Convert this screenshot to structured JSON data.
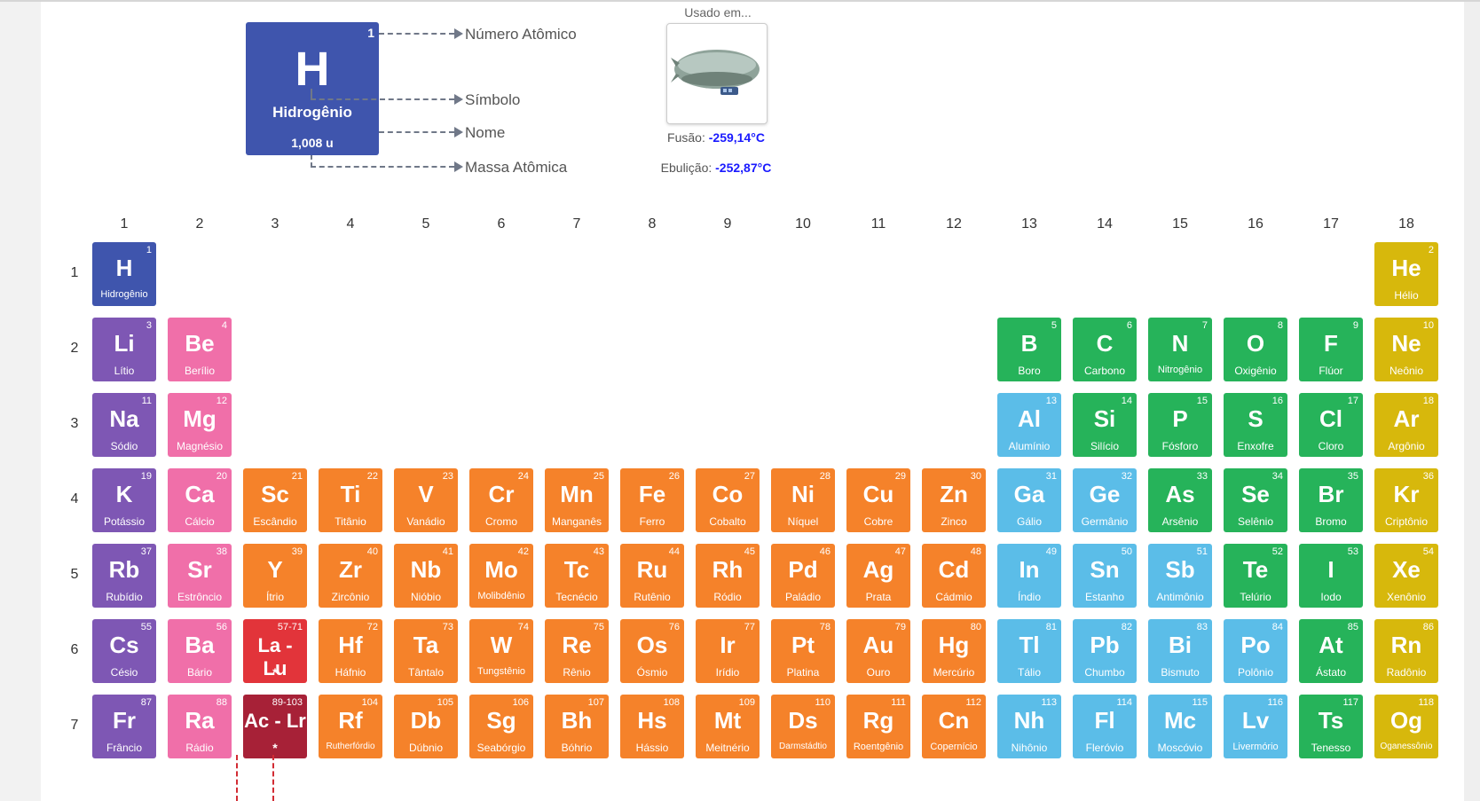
{
  "legend": {
    "card": {
      "number": "1",
      "symbol": "H",
      "name": "Hidrogênio",
      "mass": "1,008 u"
    },
    "labels": [
      "Número Atômico",
      "Símbolo",
      "Nome",
      "Massa Atômica"
    ]
  },
  "used": {
    "title": "Usado em...",
    "icon": "airship-icon",
    "melting_label": "Fusão:",
    "melting_value": "-259,14°C",
    "boiling_label": "Ebulição:",
    "boiling_value": "-252,87°C"
  },
  "colors": {
    "alkali": "#7e57b4",
    "alkaline": "#f06fa9",
    "transition": "#f5822a",
    "post": "#5bbde8",
    "nonmetal": "#26b35a",
    "noble": "#d7b80c",
    "hydrogen": "#3f55ad",
    "lanthanide": "#e2343a",
    "actinide": "#a72137"
  },
  "table": {
    "group_numbers": [
      "1",
      "2",
      "3",
      "4",
      "5",
      "6",
      "7",
      "8",
      "9",
      "10",
      "11",
      "12",
      "13",
      "14",
      "15",
      "16",
      "17",
      "18"
    ],
    "period_numbers": [
      "1",
      "2",
      "3",
      "4",
      "5",
      "6",
      "7"
    ],
    "elements": [
      {
        "n": "1",
        "s": "H",
        "name": "Hidrogênio",
        "g": 1,
        "p": 1,
        "c": "hydrogen"
      },
      {
        "n": "2",
        "s": "He",
        "name": "Hélio",
        "g": 18,
        "p": 1,
        "c": "noble"
      },
      {
        "n": "3",
        "s": "Li",
        "name": "Lítio",
        "g": 1,
        "p": 2,
        "c": "alkali"
      },
      {
        "n": "4",
        "s": "Be",
        "name": "Berílio",
        "g": 2,
        "p": 2,
        "c": "alkaline"
      },
      {
        "n": "5",
        "s": "B",
        "name": "Boro",
        "g": 13,
        "p": 2,
        "c": "nonmetal"
      },
      {
        "n": "6",
        "s": "C",
        "name": "Carbono",
        "g": 14,
        "p": 2,
        "c": "nonmetal"
      },
      {
        "n": "7",
        "s": "N",
        "name": "Nitrogênio",
        "g": 15,
        "p": 2,
        "c": "nonmetal"
      },
      {
        "n": "8",
        "s": "O",
        "name": "Oxigênio",
        "g": 16,
        "p": 2,
        "c": "nonmetal"
      },
      {
        "n": "9",
        "s": "F",
        "name": "Flúor",
        "g": 17,
        "p": 2,
        "c": "nonmetal"
      },
      {
        "n": "10",
        "s": "Ne",
        "name": "Neônio",
        "g": 18,
        "p": 2,
        "c": "noble"
      },
      {
        "n": "11",
        "s": "Na",
        "name": "Sódio",
        "g": 1,
        "p": 3,
        "c": "alkali"
      },
      {
        "n": "12",
        "s": "Mg",
        "name": "Magnésio",
        "g": 2,
        "p": 3,
        "c": "alkaline"
      },
      {
        "n": "13",
        "s": "Al",
        "name": "Alumínio",
        "g": 13,
        "p": 3,
        "c": "post"
      },
      {
        "n": "14",
        "s": "Si",
        "name": "Silício",
        "g": 14,
        "p": 3,
        "c": "nonmetal"
      },
      {
        "n": "15",
        "s": "P",
        "name": "Fósforo",
        "g": 15,
        "p": 3,
        "c": "nonmetal"
      },
      {
        "n": "16",
        "s": "S",
        "name": "Enxofre",
        "g": 16,
        "p": 3,
        "c": "nonmetal"
      },
      {
        "n": "17",
        "s": "Cl",
        "name": "Cloro",
        "g": 17,
        "p": 3,
        "c": "nonmetal"
      },
      {
        "n": "18",
        "s": "Ar",
        "name": "Argônio",
        "g": 18,
        "p": 3,
        "c": "noble"
      },
      {
        "n": "19",
        "s": "K",
        "name": "Potássio",
        "g": 1,
        "p": 4,
        "c": "alkali"
      },
      {
        "n": "20",
        "s": "Ca",
        "name": "Cálcio",
        "g": 2,
        "p": 4,
        "c": "alkaline"
      },
      {
        "n": "21",
        "s": "Sc",
        "name": "Escândio",
        "g": 3,
        "p": 4,
        "c": "transition"
      },
      {
        "n": "22",
        "s": "Ti",
        "name": "Titânio",
        "g": 4,
        "p": 4,
        "c": "transition"
      },
      {
        "n": "23",
        "s": "V",
        "name": "Vanádio",
        "g": 5,
        "p": 4,
        "c": "transition"
      },
      {
        "n": "24",
        "s": "Cr",
        "name": "Cromo",
        "g": 6,
        "p": 4,
        "c": "transition"
      },
      {
        "n": "25",
        "s": "Mn",
        "name": "Manganês",
        "g": 7,
        "p": 4,
        "c": "transition"
      },
      {
        "n": "26",
        "s": "Fe",
        "name": "Ferro",
        "g": 8,
        "p": 4,
        "c": "transition"
      },
      {
        "n": "27",
        "s": "Co",
        "name": "Cobalto",
        "g": 9,
        "p": 4,
        "c": "transition"
      },
      {
        "n": "28",
        "s": "Ni",
        "name": "Níquel",
        "g": 10,
        "p": 4,
        "c": "transition"
      },
      {
        "n": "29",
        "s": "Cu",
        "name": "Cobre",
        "g": 11,
        "p": 4,
        "c": "transition"
      },
      {
        "n": "30",
        "s": "Zn",
        "name": "Zinco",
        "g": 12,
        "p": 4,
        "c": "transition"
      },
      {
        "n": "31",
        "s": "Ga",
        "name": "Gálio",
        "g": 13,
        "p": 4,
        "c": "post"
      },
      {
        "n": "32",
        "s": "Ge",
        "name": "Germânio",
        "g": 14,
        "p": 4,
        "c": "post"
      },
      {
        "n": "33",
        "s": "As",
        "name": "Arsênio",
        "g": 15,
        "p": 4,
        "c": "nonmetal"
      },
      {
        "n": "34",
        "s": "Se",
        "name": "Selênio",
        "g": 16,
        "p": 4,
        "c": "nonmetal"
      },
      {
        "n": "35",
        "s": "Br",
        "name": "Bromo",
        "g": 17,
        "p": 4,
        "c": "nonmetal"
      },
      {
        "n": "36",
        "s": "Kr",
        "name": "Criptônio",
        "g": 18,
        "p": 4,
        "c": "noble"
      },
      {
        "n": "37",
        "s": "Rb",
        "name": "Rubídio",
        "g": 1,
        "p": 5,
        "c": "alkali"
      },
      {
        "n": "38",
        "s": "Sr",
        "name": "Estrôncio",
        "g": 2,
        "p": 5,
        "c": "alkaline"
      },
      {
        "n": "39",
        "s": "Y",
        "name": "Ítrio",
        "g": 3,
        "p": 5,
        "c": "transition"
      },
      {
        "n": "40",
        "s": "Zr",
        "name": "Zircônio",
        "g": 4,
        "p": 5,
        "c": "transition"
      },
      {
        "n": "41",
        "s": "Nb",
        "name": "Nióbio",
        "g": 5,
        "p": 5,
        "c": "transition"
      },
      {
        "n": "42",
        "s": "Mo",
        "name": "Molibdênio",
        "g": 6,
        "p": 5,
        "c": "transition"
      },
      {
        "n": "43",
        "s": "Tc",
        "name": "Tecnécio",
        "g": 7,
        "p": 5,
        "c": "transition"
      },
      {
        "n": "44",
        "s": "Ru",
        "name": "Rutênio",
        "g": 8,
        "p": 5,
        "c": "transition"
      },
      {
        "n": "45",
        "s": "Rh",
        "name": "Ródio",
        "g": 9,
        "p": 5,
        "c": "transition"
      },
      {
        "n": "46",
        "s": "Pd",
        "name": "Paládio",
        "g": 10,
        "p": 5,
        "c": "transition"
      },
      {
        "n": "47",
        "s": "Ag",
        "name": "Prata",
        "g": 11,
        "p": 5,
        "c": "transition"
      },
      {
        "n": "48",
        "s": "Cd",
        "name": "Cádmio",
        "g": 12,
        "p": 5,
        "c": "transition"
      },
      {
        "n": "49",
        "s": "In",
        "name": "Índio",
        "g": 13,
        "p": 5,
        "c": "post"
      },
      {
        "n": "50",
        "s": "Sn",
        "name": "Estanho",
        "g": 14,
        "p": 5,
        "c": "post"
      },
      {
        "n": "51",
        "s": "Sb",
        "name": "Antimônio",
        "g": 15,
        "p": 5,
        "c": "post"
      },
      {
        "n": "52",
        "s": "Te",
        "name": "Telúrio",
        "g": 16,
        "p": 5,
        "c": "nonmetal"
      },
      {
        "n": "53",
        "s": "I",
        "name": "Iodo",
        "g": 17,
        "p": 5,
        "c": "nonmetal"
      },
      {
        "n": "54",
        "s": "Xe",
        "name": "Xenônio",
        "g": 18,
        "p": 5,
        "c": "noble"
      },
      {
        "n": "55",
        "s": "Cs",
        "name": "Césio",
        "g": 1,
        "p": 6,
        "c": "alkali"
      },
      {
        "n": "56",
        "s": "Ba",
        "name": "Bário",
        "g": 2,
        "p": 6,
        "c": "alkaline"
      },
      {
        "n": "57-71",
        "s": "La - Lu",
        "name": "*",
        "g": 3,
        "p": 6,
        "c": "lanthanide",
        "special": true
      },
      {
        "n": "72",
        "s": "Hf",
        "name": "Háfnio",
        "g": 4,
        "p": 6,
        "c": "transition"
      },
      {
        "n": "73",
        "s": "Ta",
        "name": "Tântalo",
        "g": 5,
        "p": 6,
        "c": "transition"
      },
      {
        "n": "74",
        "s": "W",
        "name": "Tungstênio",
        "g": 6,
        "p": 6,
        "c": "transition"
      },
      {
        "n": "75",
        "s": "Re",
        "name": "Rênio",
        "g": 7,
        "p": 6,
        "c": "transition"
      },
      {
        "n": "76",
        "s": "Os",
        "name": "Ósmio",
        "g": 8,
        "p": 6,
        "c": "transition"
      },
      {
        "n": "77",
        "s": "Ir",
        "name": "Irídio",
        "g": 9,
        "p": 6,
        "c": "transition"
      },
      {
        "n": "78",
        "s": "Pt",
        "name": "Platina",
        "g": 10,
        "p": 6,
        "c": "transition"
      },
      {
        "n": "79",
        "s": "Au",
        "name": "Ouro",
        "g": 11,
        "p": 6,
        "c": "transition"
      },
      {
        "n": "80",
        "s": "Hg",
        "name": "Mercúrio",
        "g": 12,
        "p": 6,
        "c": "transition"
      },
      {
        "n": "81",
        "s": "Tl",
        "name": "Tálio",
        "g": 13,
        "p": 6,
        "c": "post"
      },
      {
        "n": "82",
        "s": "Pb",
        "name": "Chumbo",
        "g": 14,
        "p": 6,
        "c": "post"
      },
      {
        "n": "83",
        "s": "Bi",
        "name": "Bismuto",
        "g": 15,
        "p": 6,
        "c": "post"
      },
      {
        "n": "84",
        "s": "Po",
        "name": "Polônio",
        "g": 16,
        "p": 6,
        "c": "post"
      },
      {
        "n": "85",
        "s": "At",
        "name": "Ástato",
        "g": 17,
        "p": 6,
        "c": "nonmetal"
      },
      {
        "n": "86",
        "s": "Rn",
        "name": "Radônio",
        "g": 18,
        "p": 6,
        "c": "noble"
      },
      {
        "n": "87",
        "s": "Fr",
        "name": "Frâncio",
        "g": 1,
        "p": 7,
        "c": "alkali"
      },
      {
        "n": "88",
        "s": "Ra",
        "name": "Rádio",
        "g": 2,
        "p": 7,
        "c": "alkaline"
      },
      {
        "n": "89-103",
        "s": "Ac - Lr",
        "name": "*",
        "g": 3,
        "p": 7,
        "c": "actinide",
        "special": true
      },
      {
        "n": "104",
        "s": "Rf",
        "name": "Rutherfórdio",
        "g": 4,
        "p": 7,
        "c": "transition"
      },
      {
        "n": "105",
        "s": "Db",
        "name": "Dúbnio",
        "g": 5,
        "p": 7,
        "c": "transition"
      },
      {
        "n": "106",
        "s": "Sg",
        "name": "Seabórgio",
        "g": 6,
        "p": 7,
        "c": "transition"
      },
      {
        "n": "107",
        "s": "Bh",
        "name": "Bóhrio",
        "g": 7,
        "p": 7,
        "c": "transition"
      },
      {
        "n": "108",
        "s": "Hs",
        "name": "Hássio",
        "g": 8,
        "p": 7,
        "c": "transition"
      },
      {
        "n": "109",
        "s": "Mt",
        "name": "Meitnério",
        "g": 9,
        "p": 7,
        "c": "transition"
      },
      {
        "n": "110",
        "s": "Ds",
        "name": "Darmstádtio",
        "g": 10,
        "p": 7,
        "c": "transition"
      },
      {
        "n": "111",
        "s": "Rg",
        "name": "Roentgênio",
        "g": 11,
        "p": 7,
        "c": "transition"
      },
      {
        "n": "112",
        "s": "Cn",
        "name": "Copernício",
        "g": 12,
        "p": 7,
        "c": "transition"
      },
      {
        "n": "113",
        "s": "Nh",
        "name": "Nihônio",
        "g": 13,
        "p": 7,
        "c": "post"
      },
      {
        "n": "114",
        "s": "Fl",
        "name": "Fleróvio",
        "g": 14,
        "p": 7,
        "c": "post"
      },
      {
        "n": "115",
        "s": "Mc",
        "name": "Moscóvio",
        "g": 15,
        "p": 7,
        "c": "post"
      },
      {
        "n": "116",
        "s": "Lv",
        "name": "Livermório",
        "g": 16,
        "p": 7,
        "c": "post"
      },
      {
        "n": "117",
        "s": "Ts",
        "name": "Tenesso",
        "g": 17,
        "p": 7,
        "c": "nonmetal"
      },
      {
        "n": "118",
        "s": "Og",
        "name": "Oganessônio",
        "g": 18,
        "p": 7,
        "c": "noble"
      }
    ]
  }
}
